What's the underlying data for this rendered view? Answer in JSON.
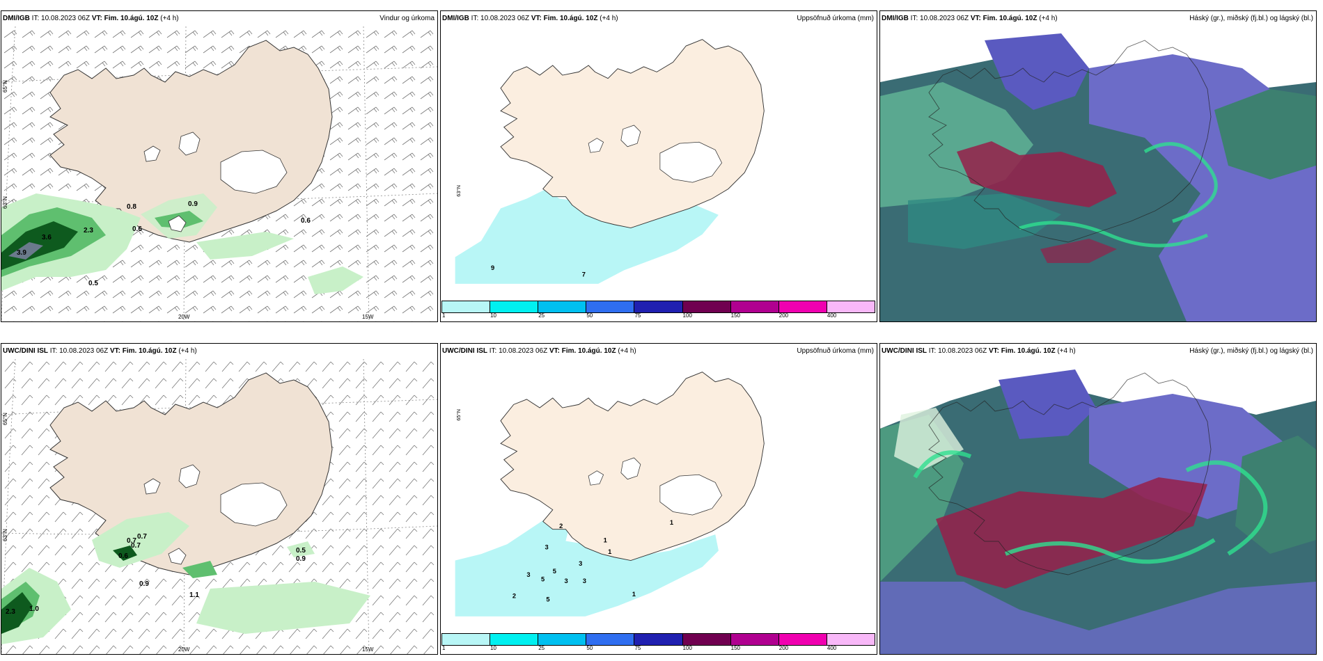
{
  "panels": {
    "p1": {
      "model": "DMI/IGB",
      "it_label": "IT:",
      "it": "10.08.2023 06Z",
      "vt_label": "VT:",
      "vt": "Fim. 10.ágú. 10Z",
      "lead": "(+4 h)",
      "title": "Vindur og úrkoma"
    },
    "p2": {
      "model": "DMI/IGB",
      "it_label": "IT:",
      "it": "10.08.2023 06Z",
      "vt_label": "VT:",
      "vt": "Fim. 10.ágú. 10Z",
      "lead": "(+4 h)",
      "title": "Uppsöfnuð úrkoma (mm)"
    },
    "p3": {
      "model": "DMI/IGB",
      "it_label": "IT:",
      "it": "10.08.2023 06Z",
      "vt_label": "VT:",
      "vt": "Fim. 10.ágú. 10Z",
      "lead": "(+4 h)",
      "title": "Háský (gr.), miðský (fj.bl.) og lágský (bl.)"
    },
    "p4": {
      "model": "UWC/DINI ISL",
      "it_label": "IT:",
      "it": "10.08.2023 06Z",
      "vt_label": "VT:",
      "vt": "Fim. 10.ágú. 10Z",
      "lead": "(+4 h)",
      "title": ""
    },
    "p5": {
      "model": "UWC/DINI ISL",
      "it_label": "IT:",
      "it": "10.08.2023 06Z",
      "vt_label": "VT:",
      "vt": "Fim. 10.ágú. 10Z",
      "lead": "(+4 h)",
      "title": "Uppsöfnuð úrkoma (mm)"
    },
    "p6": {
      "model": "UWC/DINI ISL",
      "it_label": "IT:",
      "it": "10.08.2023 06Z",
      "vt_label": "VT:",
      "vt": "Fim. 10.ágú. 10Z",
      "lead": "(+4 h)",
      "title": "Háský (gr.), miðský (fj.bl.) og lágský (bl.)"
    }
  },
  "axes": {
    "lat_65": "65°N",
    "lat_63": "63°N",
    "lon_20": "20W",
    "lon_15": "15W"
  },
  "colorbar": {
    "ticks": [
      "1",
      "10",
      "25",
      "50",
      "75",
      "100",
      "150",
      "200",
      "400"
    ],
    "colors": [
      "#b8f6f6",
      "#00f0f0",
      "#00c0f0",
      "#2f6ef0",
      "#2020b0",
      "#700050",
      "#b00090",
      "#f000b0",
      "#f8b8f8"
    ]
  },
  "labels": {
    "p1": [
      "0.8",
      "0.9",
      "3.6",
      "2.3",
      "0.6",
      "0.6",
      "3.9",
      "0.5"
    ],
    "p2": [
      "9",
      "7"
    ],
    "p4": [
      "0.7",
      "0.7",
      "0.7",
      "0.6",
      "0.9",
      "0.5",
      "0.9",
      "2.3",
      "1.0",
      "1.1"
    ],
    "p5": [
      "2",
      "3",
      "3",
      "5",
      "5",
      "3",
      "3",
      "2",
      "5",
      "3",
      "1",
      "1",
      "1",
      "1"
    ]
  },
  "colors": {
    "land": "#f0e2d4",
    "land_light": "#fbeee0",
    "precip_light": "#c8f0c8",
    "precip_dark": "#0e5a1e",
    "cloud_high": "#6c6cc8",
    "cloud_mid": "#2f8a82",
    "cloud_low": "#2f5e6e",
    "cloud_red": "#96204a"
  }
}
